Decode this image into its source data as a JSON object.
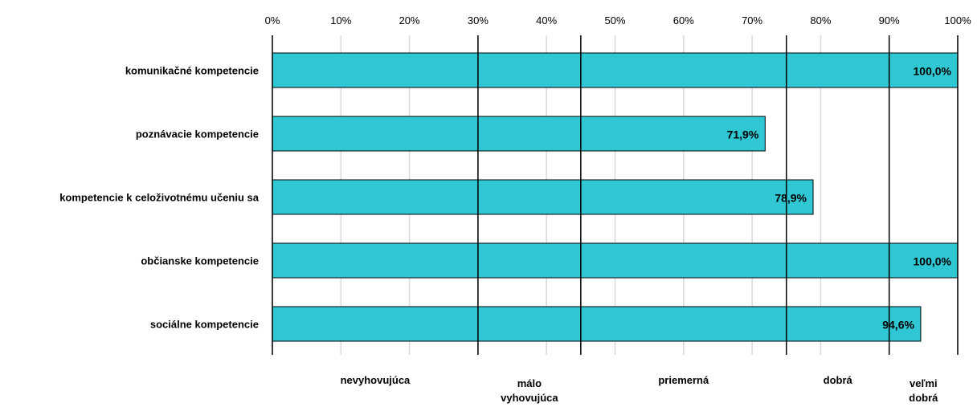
{
  "chart_data": {
    "type": "bar",
    "orientation": "horizontal",
    "categories": [
      "komunikačné kompetencie",
      "poznávacie kompetencie",
      "kompetencie k celoživotnému učeniu sa",
      "občianske kompetencie",
      "sociálne kompetencie"
    ],
    "values": [
      100.0,
      71.9,
      78.9,
      100.0,
      94.6
    ],
    "value_labels": [
      "100,0%",
      "71,9%",
      "78,9%",
      "100,0%",
      "94,6%"
    ],
    "xlim": [
      0,
      100
    ],
    "x_ticks": [
      "0%",
      "10%",
      "20%",
      "30%",
      "40%",
      "50%",
      "60%",
      "70%",
      "80%",
      "90%",
      "100%"
    ],
    "x_axis_position": "top",
    "grid": true,
    "bar_color": "#2ec7d3",
    "thresholds": [
      30,
      45,
      75,
      90,
      100
    ],
    "bands": [
      {
        "lines": [
          "nevyhovujúca"
        ],
        "from": 0,
        "to": 30
      },
      {
        "lines": [
          "málo",
          "vyhovujúca"
        ],
        "from": 30,
        "to": 45
      },
      {
        "lines": [
          "priemerná"
        ],
        "from": 45,
        "to": 75
      },
      {
        "lines": [
          "dobrá"
        ],
        "from": 75,
        "to": 90
      },
      {
        "lines": [
          "veľmi",
          "dobrá"
        ],
        "from": 90,
        "to": 100
      }
    ]
  }
}
